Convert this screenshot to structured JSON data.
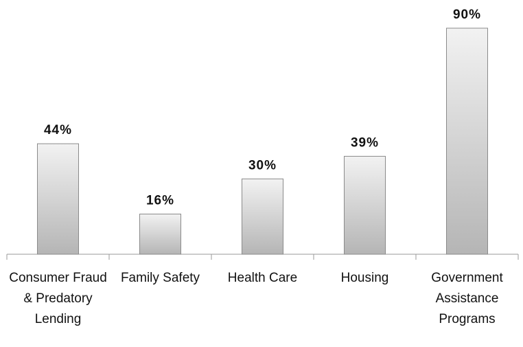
{
  "chart_data": {
    "type": "bar",
    "categories": [
      "Consumer Fraud & Predatory Lending",
      "Family Safety",
      "Health Care",
      "Housing",
      "Government Assistance Programs"
    ],
    "values": [
      44,
      16,
      30,
      39,
      90
    ],
    "value_labels": [
      "44%",
      "16%",
      "30%",
      "39%",
      "90%"
    ]
  }
}
